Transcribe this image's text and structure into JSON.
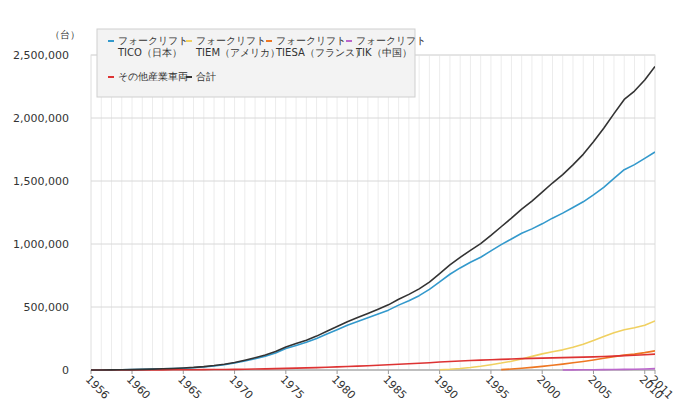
{
  "chart_data": {
    "type": "line",
    "y_label": "（台）",
    "x": [
      1956,
      1957,
      1958,
      1959,
      1960,
      1961,
      1962,
      1963,
      1964,
      1965,
      1966,
      1967,
      1968,
      1969,
      1970,
      1971,
      1972,
      1973,
      1974,
      1975,
      1976,
      1977,
      1978,
      1979,
      1980,
      1981,
      1982,
      1983,
      1984,
      1985,
      1986,
      1987,
      1988,
      1989,
      1990,
      1991,
      1992,
      1993,
      1994,
      1995,
      1996,
      1997,
      1998,
      1999,
      2000,
      2001,
      2002,
      2003,
      2004,
      2005,
      2006,
      2007,
      2008,
      2009,
      2010,
      2011
    ],
    "xlim": [
      1956,
      2011
    ],
    "xticks": [
      1956,
      1960,
      1965,
      1970,
      1975,
      1980,
      1985,
      1990,
      1995,
      2000,
      2005,
      2010,
      2011
    ],
    "ylim": [
      0,
      2500000
    ],
    "yticks": [
      0,
      {
        "value": 500000,
        "label": "500,000"
      },
      {
        "value": 1000000,
        "label": "1,000,000"
      },
      {
        "value": 1500000,
        "label": "1,500,000"
      },
      {
        "value": 2000000,
        "label": "2,000,000"
      },
      {
        "value": 2500000,
        "label": "2,500,000"
      }
    ],
    "grid": true,
    "legend": "top-left",
    "series": [
      {
        "name": "フォークリフト\nTICO（日本）",
        "color": "#3399cc",
        "values": [
          0,
          500,
          1000,
          2000,
          3000,
          5000,
          7000,
          9000,
          11000,
          14000,
          18000,
          24000,
          32000,
          42000,
          55000,
          72000,
          90000,
          110000,
          135000,
          170000,
          195000,
          220000,
          250000,
          285000,
          320000,
          355000,
          385000,
          415000,
          445000,
          475000,
          515000,
          550000,
          590000,
          640000,
          700000,
          760000,
          810000,
          855000,
          895000,
          945000,
          995000,
          1040000,
          1085000,
          1120000,
          1160000,
          1205000,
          1245000,
          1290000,
          1335000,
          1390000,
          1450000,
          1520000,
          1590000,
          1630000,
          1680000,
          1730000
        ]
      },
      {
        "name": "フォークリフト\nTIEM（アメリカ）",
        "color": "#f0d060",
        "values": [
          null,
          null,
          null,
          null,
          null,
          null,
          null,
          null,
          null,
          null,
          null,
          null,
          null,
          null,
          null,
          null,
          null,
          null,
          null,
          null,
          null,
          null,
          null,
          null,
          null,
          null,
          null,
          null,
          null,
          null,
          null,
          null,
          null,
          null,
          2000,
          6000,
          12000,
          20000,
          30000,
          42000,
          55000,
          70000,
          88000,
          108000,
          128000,
          145000,
          160000,
          180000,
          205000,
          235000,
          265000,
          295000,
          320000,
          335000,
          355000,
          390000
        ]
      },
      {
        "name": "フォークリフト\nTIESA（フランス）",
        "color": "#ee7722",
        "values": [
          null,
          null,
          null,
          null,
          null,
          null,
          null,
          null,
          null,
          null,
          null,
          null,
          null,
          null,
          null,
          null,
          null,
          null,
          null,
          null,
          null,
          null,
          null,
          null,
          null,
          null,
          null,
          null,
          null,
          null,
          null,
          null,
          null,
          null,
          null,
          null,
          null,
          null,
          null,
          null,
          3000,
          8000,
          14000,
          21000,
          29000,
          38000,
          47000,
          57000,
          68000,
          80000,
          93000,
          106000,
          118000,
          126000,
          138000,
          152000
        ]
      },
      {
        "name": "フォークリフト\nTIK（中国）",
        "color": "#bb66cc",
        "values": [
          null,
          null,
          null,
          null,
          null,
          null,
          null,
          null,
          null,
          null,
          null,
          null,
          null,
          null,
          null,
          null,
          null,
          null,
          null,
          null,
          null,
          null,
          null,
          null,
          null,
          null,
          null,
          null,
          null,
          null,
          null,
          null,
          null,
          null,
          null,
          null,
          null,
          null,
          null,
          null,
          null,
          null,
          null,
          null,
          null,
          null,
          500,
          1000,
          1500,
          2000,
          3000,
          4000,
          5000,
          6000,
          8000,
          11000
        ]
      },
      {
        "name": "その他産業車両",
        "color": "#dd3333",
        "values": [
          0,
          0,
          0,
          0,
          0,
          0,
          0,
          1000,
          1500,
          2000,
          2500,
          3000,
          3500,
          4000,
          5000,
          6000,
          7500,
          9000,
          11000,
          13000,
          15000,
          17000,
          19000,
          22000,
          25000,
          28000,
          31000,
          34000,
          38000,
          42000,
          46000,
          50000,
          54000,
          58000,
          63000,
          68000,
          72000,
          75000,
          78000,
          81000,
          84000,
          87000,
          90000,
          92000,
          94000,
          96000,
          98000,
          100000,
          102000,
          104000,
          107000,
          110000,
          114000,
          117000,
          121000,
          126000
        ]
      },
      {
        "name": "合計",
        "color": "#333333",
        "values": [
          0,
          500,
          1000,
          2000,
          3000,
          5000,
          7000,
          10000,
          12500,
          16000,
          20500,
          27000,
          35500,
          46000,
          60000,
          78000,
          97500,
          119000,
          146000,
          183000,
          210000,
          237000,
          269000,
          307000,
          345000,
          383000,
          416000,
          449000,
          483000,
          517000,
          561000,
          600000,
          644000,
          698000,
          765000,
          834000,
          894000,
          950000,
          1003000,
          1068000,
          1137000,
          1205000,
          1277000,
          1341000,
          1411000,
          1484000,
          1550500,
          1628000,
          1711500,
          1811000,
          1918000,
          2035000,
          2147000,
          2214000,
          2302000,
          2409000
        ]
      }
    ]
  }
}
